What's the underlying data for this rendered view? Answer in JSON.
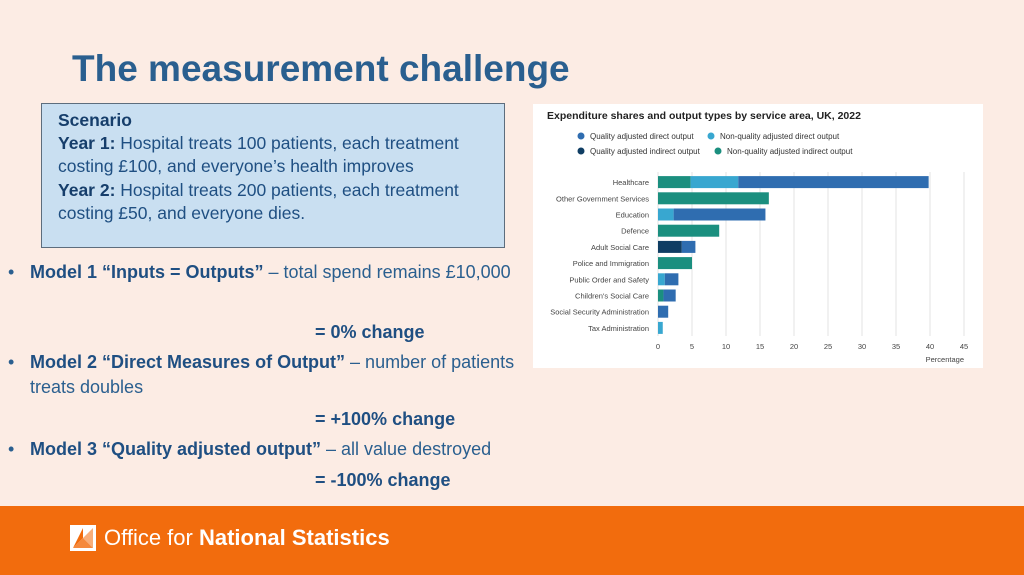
{
  "slide": {
    "title": "The measurement challenge"
  },
  "scenario": {
    "heading": "Scenario",
    "year1_label": "Year 1:",
    "year1_text": " Hospital treats 100 patients, each treatment costing £100, and everyone’s health improves",
    "year2_label": "Year 2:",
    "year2_text": " Hospital treats 200 patients, each treatment costing £50, and everyone dies."
  },
  "models": [
    {
      "bullet": "•",
      "name": "Model 1 “Inputs = Outputs”",
      "desc": " – total spend remains £10,000",
      "result": "= 0% change"
    },
    {
      "bullet": "•",
      "name": "Model 2 “Direct Measures of Output”",
      "desc": " – number of patients treats doubles",
      "result": "= +100% change"
    },
    {
      "bullet": "•",
      "name": "Model 3 “Quality adjusted output”",
      "desc": " – all value destroyed",
      "result": "= -100% change"
    }
  ],
  "footer": {
    "org_light": "Office for ",
    "org_bold": "National Statistics",
    "logo_icon": "ons-logo-icon"
  },
  "chart_data": {
    "type": "bar",
    "orientation": "horizontal",
    "stacked": true,
    "title": "Expenditure shares and output types by service area, UK, 2022",
    "xlabel": "Percentage",
    "ylabel": "",
    "xlim": [
      0,
      45
    ],
    "xticks": [
      0,
      5,
      10,
      15,
      20,
      25,
      30,
      35,
      40,
      45
    ],
    "grid": true,
    "legend_position": "top",
    "categories": [
      "Healthcare",
      "Other Government Services",
      "Education",
      "Defence",
      "Adult Social Care",
      "Police and Immigration",
      "Public Order and Safety",
      "Children's Social Care",
      "Social Security Administration",
      "Tax Administration"
    ],
    "series": [
      {
        "name": "Quality adjusted direct output",
        "color": "#2f6db0",
        "values": [
          28,
          0,
          13.5,
          0,
          2,
          0,
          2,
          1.8,
          1.5,
          0
        ]
      },
      {
        "name": "Non-quality adjusted direct output",
        "color": "#38a7d0",
        "values": [
          7,
          0,
          2.3,
          0,
          0,
          0,
          1,
          0,
          0,
          0.7
        ]
      },
      {
        "name": "Quality adjusted indirect output",
        "color": "#0f3d63",
        "values": [
          0,
          0,
          0,
          0,
          3.5,
          0,
          0,
          0,
          0,
          0
        ]
      },
      {
        "name": "Non-quality adjusted indirect output",
        "color": "#1b8f7f",
        "values": [
          4.8,
          16.3,
          0,
          9,
          0,
          5,
          0,
          0.8,
          0,
          0
        ]
      }
    ],
    "stack_order": [
      "Non-quality adjusted indirect output",
      "Quality adjusted indirect output",
      "Non-quality adjusted direct output",
      "Quality adjusted direct output"
    ]
  }
}
